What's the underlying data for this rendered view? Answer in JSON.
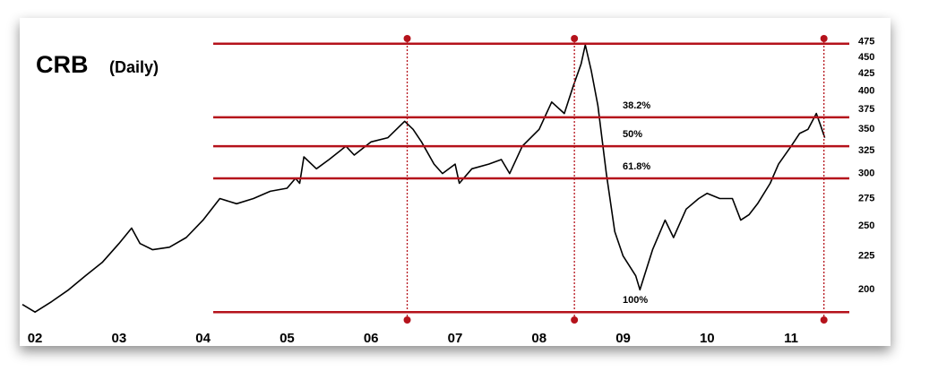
{
  "chart_data": {
    "type": "line",
    "title": "CRB",
    "subtitle": "(Daily)",
    "log_y": true,
    "line_color": "#000000",
    "level_color": "#b5121b",
    "x": [
      2001.85,
      2002.0,
      2002.2,
      2002.4,
      2002.6,
      2002.8,
      2003.0,
      2003.15,
      2003.25,
      2003.4,
      2003.6,
      2003.8,
      2004.0,
      2004.2,
      2004.4,
      2004.6,
      2004.8,
      2005.0,
      2005.1,
      2005.15,
      2005.2,
      2005.35,
      2005.5,
      2005.7,
      2005.8,
      2006.0,
      2006.2,
      2006.4,
      2006.5,
      2006.6,
      2006.75,
      2006.85,
      2007.0,
      2007.05,
      2007.2,
      2007.4,
      2007.55,
      2007.65,
      2007.8,
      2008.0,
      2008.15,
      2008.3,
      2008.4,
      2008.5,
      2008.55,
      2008.62,
      2008.7,
      2008.8,
      2008.9,
      2009.0,
      2009.15,
      2009.2,
      2009.35,
      2009.5,
      2009.6,
      2009.75,
      2009.9,
      2010.0,
      2010.15,
      2010.3,
      2010.4,
      2010.5,
      2010.6,
      2010.75,
      2010.85,
      2011.0,
      2011.1,
      2011.2,
      2011.3,
      2011.35,
      2011.4
    ],
    "values": [
      190,
      185,
      192,
      200,
      210,
      220,
      235,
      248,
      235,
      230,
      232,
      240,
      255,
      275,
      270,
      275,
      282,
      285,
      295,
      290,
      318,
      305,
      315,
      330,
      320,
      335,
      340,
      360,
      350,
      335,
      310,
      300,
      310,
      290,
      305,
      310,
      315,
      300,
      330,
      350,
      385,
      370,
      405,
      440,
      470,
      430,
      380,
      300,
      245,
      225,
      210,
      200,
      230,
      255,
      240,
      265,
      275,
      280,
      275,
      275,
      255,
      260,
      270,
      290,
      310,
      330,
      345,
      350,
      370,
      355,
      340
    ],
    "xlim": [
      2001.85,
      2011.5
    ],
    "ylim": [
      180,
      485
    ],
    "xticks": [
      {
        "value": 2002,
        "label": "02"
      },
      {
        "value": 2003,
        "label": "03"
      },
      {
        "value": 2004,
        "label": "04"
      },
      {
        "value": 2005,
        "label": "05"
      },
      {
        "value": 2006,
        "label": "06"
      },
      {
        "value": 2007,
        "label": "07"
      },
      {
        "value": 2008,
        "label": "08"
      },
      {
        "value": 2009,
        "label": "09"
      },
      {
        "value": 2010,
        "label": "10"
      },
      {
        "value": 2011,
        "label": "11"
      }
    ],
    "yticks": [
      200,
      225,
      250,
      275,
      300,
      325,
      350,
      375,
      400,
      425,
      450,
      475
    ],
    "levels": [
      {
        "value": 472
      },
      {
        "value": 365,
        "label": "38.2%"
      },
      {
        "value": 330,
        "label": "50%"
      },
      {
        "value": 295,
        "label": "61.8%"
      },
      {
        "value": 185,
        "label": "100%"
      }
    ],
    "markers_x": [
      2006.43,
      2008.42,
      2011.39
    ]
  }
}
